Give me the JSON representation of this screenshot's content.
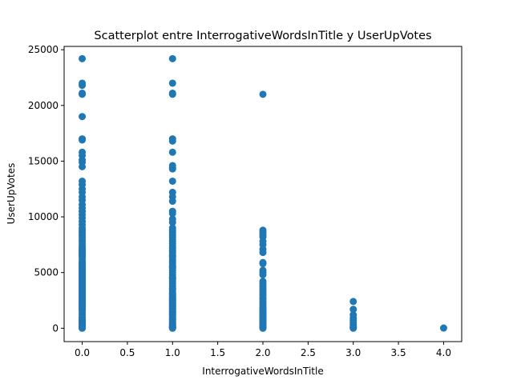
{
  "chart_data": {
    "type": "scatter",
    "title": "Scatterplot entre InterrogativeWordsInTitle y UserUpVotes",
    "xlabel": "InterrogativeWordsInTitle",
    "ylabel": "UserUpVotes",
    "xlim": [
      -0.2,
      4.2
    ],
    "ylim": [
      -1200,
      25300
    ],
    "xticks": [
      0.0,
      0.5,
      1.0,
      1.5,
      2.0,
      2.5,
      3.0,
      3.5,
      4.0
    ],
    "xtick_labels": [
      "0.0",
      "0.5",
      "1.0",
      "1.5",
      "2.0",
      "2.5",
      "3.0",
      "3.5",
      "4.0"
    ],
    "yticks": [
      0,
      5000,
      10000,
      15000,
      20000,
      25000
    ],
    "ytick_labels": [
      "0",
      "5000",
      "10000",
      "15000",
      "20000",
      "25000"
    ],
    "grid": false,
    "marker_color": "#1f77b4",
    "series": [
      {
        "x": [
          0,
          0,
          0,
          0,
          0,
          0,
          0,
          0,
          0,
          0,
          0,
          0,
          0,
          0,
          0,
          0,
          0,
          0,
          0,
          0,
          0,
          0,
          0,
          0,
          0,
          0,
          0,
          0,
          0,
          0,
          0,
          0,
          0,
          0,
          0,
          0,
          0,
          0,
          0,
          0,
          0,
          0,
          0,
          0,
          0,
          0,
          0,
          0,
          0,
          0,
          0,
          0,
          0,
          0,
          0,
          0,
          0,
          0,
          0,
          0,
          0,
          0,
          0,
          0,
          0,
          0,
          0,
          0,
          0,
          0,
          0,
          0,
          0,
          0,
          0,
          0,
          0,
          0,
          0,
          0,
          0,
          0,
          0,
          0,
          0,
          0,
          0,
          0,
          0,
          0,
          0,
          0,
          0,
          0,
          0,
          0,
          0,
          0,
          0,
          0,
          0,
          0,
          0,
          0,
          0,
          0,
          1,
          1,
          1,
          1,
          1,
          1,
          1,
          1,
          1,
          1,
          1,
          1,
          1,
          1,
          1,
          1,
          1,
          1,
          1,
          1,
          1,
          1,
          1,
          1,
          1,
          1,
          1,
          1,
          1,
          1,
          1,
          1,
          1,
          1,
          1,
          1,
          1,
          1,
          1,
          1,
          1,
          1,
          1,
          1,
          1,
          1,
          1,
          1,
          1,
          1,
          1,
          1,
          1,
          1,
          1,
          1,
          1,
          1,
          1,
          1,
          1,
          1,
          1,
          1,
          1,
          1,
          1,
          1,
          1,
          1,
          1,
          1,
          1,
          1,
          1,
          1,
          1,
          1,
          1,
          1,
          1,
          1,
          1,
          1,
          1,
          1,
          1,
          1,
          1,
          2,
          2,
          2,
          2,
          2,
          2,
          2,
          2,
          2,
          2,
          2,
          2,
          2,
          2,
          2,
          2,
          2,
          2,
          2,
          2,
          2,
          2,
          2,
          2,
          2,
          2,
          2,
          2,
          2,
          2,
          2,
          2,
          2,
          2,
          2,
          2,
          2,
          2,
          2,
          2,
          2,
          2,
          2,
          2,
          2,
          2,
          2,
          2,
          3,
          3,
          3,
          3,
          3,
          3,
          3,
          3,
          3,
          3,
          4
        ],
        "y": [
          24200,
          22000,
          21800,
          21100,
          21000,
          19000,
          17000,
          16900,
          15800,
          15500,
          15100,
          14900,
          14500,
          13200,
          12900,
          12500,
          12200,
          11800,
          11500,
          11100,
          10800,
          10500,
          10200,
          9900,
          9600,
          9300,
          9000,
          8800,
          8600,
          8400,
          8200,
          8000,
          7800,
          7600,
          7400,
          7200,
          7000,
          6800,
          6600,
          6400,
          6200,
          6000,
          5800,
          5600,
          5400,
          5200,
          5000,
          4800,
          4600,
          4400,
          4200,
          4000,
          3800,
          3600,
          3400,
          3200,
          3000,
          2800,
          2600,
          2400,
          2200,
          2000,
          1800,
          1600,
          1400,
          1200,
          1000,
          900,
          800,
          700,
          600,
          500,
          400,
          300,
          200,
          150,
          100,
          50,
          20,
          0,
          7100,
          6900,
          6700,
          6500,
          5900,
          5700,
          5500,
          5300,
          5100,
          4900,
          4700,
          4500,
          4300,
          4100,
          3900,
          3700,
          3500,
          3300,
          3100,
          2900,
          2700,
          2500,
          2300,
          2100,
          1900,
          1700,
          24200,
          22000,
          21100,
          21000,
          17000,
          16800,
          15800,
          14600,
          14400,
          14300,
          13200,
          12200,
          11800,
          11400,
          10500,
          10300,
          9800,
          9500,
          9000,
          8800,
          8600,
          8400,
          8200,
          8000,
          7800,
          7600,
          7400,
          7200,
          7000,
          6800,
          6600,
          6400,
          6200,
          6000,
          5800,
          5600,
          5400,
          5200,
          5000,
          4800,
          4600,
          4400,
          4200,
          4000,
          3800,
          3600,
          3400,
          3200,
          3000,
          2800,
          2600,
          2400,
          2200,
          2000,
          1800,
          1600,
          1400,
          1200,
          1000,
          900,
          800,
          700,
          600,
          500,
          400,
          300,
          200,
          150,
          100,
          50,
          20,
          0,
          6500,
          5500,
          4500,
          3500,
          2500,
          1500,
          1100,
          1300,
          1500,
          1700,
          1900,
          2100,
          2300,
          2500,
          2700,
          2900,
          3100,
          21000,
          8800,
          8600,
          8400,
          8200,
          7800,
          7500,
          7100,
          6800,
          5900,
          5800,
          5200,
          5000,
          4800,
          4200,
          4000,
          3800,
          3600,
          3400,
          3200,
          3000,
          2800,
          2600,
          2400,
          2200,
          2000,
          1800,
          1600,
          1400,
          1200,
          1000,
          900,
          800,
          700,
          600,
          500,
          400,
          300,
          200,
          150,
          100,
          50,
          20,
          0,
          1100,
          1300,
          1500,
          1700,
          2400,
          1700,
          1200,
          900,
          700,
          500,
          300,
          150,
          50,
          0,
          20
        ]
      }
    ]
  }
}
